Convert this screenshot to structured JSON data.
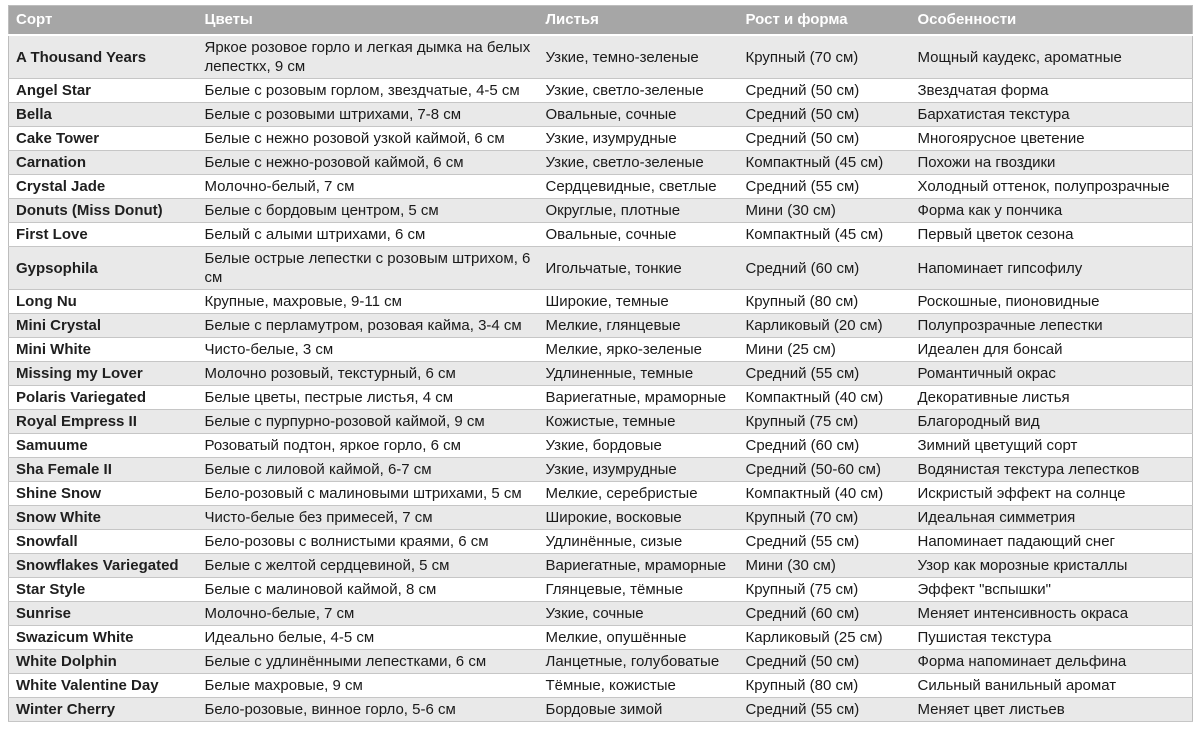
{
  "colors": {
    "header_background": "#a6a6a6",
    "header_text": "#ffffff",
    "banded_row_background": "#e9e9e9",
    "plain_row_background": "#ffffff",
    "row_border": "#c6c6c6",
    "body_text": "#1a1a1a"
  },
  "table": {
    "columns": [
      "Сорт",
      "Цветы",
      "Листья",
      "Рост и форма",
      "Особенности"
    ],
    "rows": [
      [
        "A Thousand Years",
        "Яркое  розовое горло и легкая дымка на белых лепесткх,  9 см",
        "Узкие, темно-зеленые",
        "Крупный (70 см)",
        "Мощный каудекс, ароматные"
      ],
      [
        "Angel Star",
        "Белые с розовым горлом, звездчатые, 4-5 см",
        "Узкие, светло-зеленые",
        "Средний (50 см)",
        "Звездчатая форма"
      ],
      [
        "Bella",
        "Белые с розовыми штрихами, 7-8 см",
        "Овальные, сочные",
        "Средний (50 см)",
        "Бархатистая текстура"
      ],
      [
        "Cake Tower",
        "Белые  с нежно розовой узкой каймой, 6 см",
        "Узкие, изумрудные",
        "Средний (50 см)",
        "Многоярусное цветение"
      ],
      [
        "Carnation",
        "Белые с нежно-розовой каймой, 6 см",
        "Узкие, светло-зеленые",
        "Компактный (45 см)",
        "Похожи на гвоздики"
      ],
      [
        "Crystal Jade",
        "Молочно-белый, 7 см",
        "Сердцевидные, светлые",
        "Средний (55 см)",
        "Холодный оттенок, полупрозрачные"
      ],
      [
        "Donuts (Miss Donut)",
        "Белые с бордовым центром, 5 см",
        "Округлые, плотные",
        "Мини (30 см)",
        "Форма как у пончика"
      ],
      [
        "First Love",
        "Белый с алыми штрихами, 6 см",
        "Овальные, сочные",
        "Компактный (45 см)",
        "Первый цветок сезона"
      ],
      [
        "Gypsophila",
        "Белые острые лепестки с розовым штрихом, 6 см",
        "Игольчатые, тонкие",
        "Средний (60 см)",
        "Напоминает гипсофилу"
      ],
      [
        "Long Nu",
        "Крупные, махровые, 9-11 см",
        "Широкие, темные",
        "Крупный (80 см)",
        "Роскошные, пионовидные"
      ],
      [
        "Mini Crystal",
        "Белые с перламутром, розовая кайма, 3-4 см",
        "Мелкие, глянцевые",
        "Карликовый (20 см)",
        "Полупрозрачные лепестки"
      ],
      [
        "Mini White",
        "Чисто-белые, 3 см",
        "Мелкие, ярко-зеленые",
        "Мини (25 см)",
        "Идеален для бонсай"
      ],
      [
        "Missing my Lover",
        "Молочно розовый, текстурный, 6 см",
        "Удлиненные, темные",
        "Средний (55 см)",
        "Романтичный окрас"
      ],
      [
        "Polaris Variegated",
        "Белые цветы, пестрые листья, 4 см",
        "Вариегатные, мраморные",
        "Компактный (40 см)",
        "Декоративные листья"
      ],
      [
        "Royal Empress II",
        "Белые с пурпурно-розовой каймой, 9 см",
        "Кожистые, темные",
        "Крупный (75 см)",
        "Благородный вид"
      ],
      [
        "Samuume",
        "Розоватый подтон, яркое горло, 6 см",
        "Узкие, бордовые",
        "Средний (60 см)",
        "Зимний цветущий сорт"
      ],
      [
        "Sha Female II",
        "Белые с лиловой каймой, 6-7 см",
        "Узкие, изумрудные",
        "Средний (50-60 см)",
        "Водянистая текстура лепестков"
      ],
      [
        "Shine Snow",
        "Бело-розовый с малиновыми штрихами, 5 см",
        "Мелкие, серебристые",
        "Компактный (40 см)",
        "Искристый эффект на солнце"
      ],
      [
        "Snow White",
        "Чисто-белые без примесей, 7 см",
        "Широкие, восковые",
        "Крупный (70 см)",
        "Идеальная симметрия"
      ],
      [
        "Snowfall",
        "Бело-розовы с волнистыми краями, 6 см",
        "Удлинённые, сизые",
        "Средний (55 см)",
        "Напоминает падающий снег"
      ],
      [
        "Snowflakes Variegated",
        "Белые с желтой сердцевиной, 5 см",
        "Вариегатные, мраморные",
        "Мини (30 см)",
        "Узор как морозные кристаллы"
      ],
      [
        "Star Style",
        "Белые с малиновой каймой, 8 см",
        "Глянцевые, тёмные",
        "Крупный (75 см)",
        "Эффект \"вспышки\""
      ],
      [
        "Sunrise",
        "Молочно-белые, 7 см",
        "Узкие, сочные",
        "Средний (60 см)",
        "Меняет интенсивность окраса"
      ],
      [
        "Swazicum White",
        "Идеально белые, 4-5 см",
        "Мелкие, опушённые",
        "Карликовый (25 см)",
        "Пушистая текстура"
      ],
      [
        "White Dolphin",
        "Белые с удлинёнными лепестками, 6 см",
        "Ланцетные, голубоватые",
        "Средний (50 см)",
        "Форма напоминает дельфина"
      ],
      [
        "White Valentine Day",
        "Белые махровые, 9 см",
        "Тёмные, кожистые",
        "Крупный (80 см)",
        "Сильный ванильный аромат"
      ],
      [
        "Winter Cherry",
        "Бело-розовые, винное горло, 5-6 см",
        "Бордовые зимой",
        "Средний (55 см)",
        "Меняет цвет листьев"
      ]
    ]
  }
}
